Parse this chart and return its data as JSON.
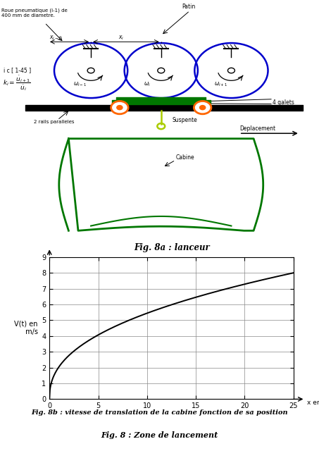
{
  "fig_title_a": "Fig. 8a : lanceur",
  "fig_caption_b": "Fig. 8b : vitesse de translation de la cabine fonction de sa position",
  "fig_caption_main": "Fig. 8 : Zone de lancement",
  "ylabel": "V(t) en\n m/s",
  "xlabel": "x en m",
  "xlim": [
    0,
    25
  ],
  "ylim": [
    0,
    9
  ],
  "xticks": [
    0,
    5,
    10,
    15,
    20,
    25
  ],
  "yticks": [
    0,
    1,
    2,
    3,
    4,
    5,
    6,
    7,
    8,
    9
  ],
  "wheel_color": "#0000cc",
  "green_color": "#007700",
  "orange_color": "#ff6600",
  "rail_color": "#111111",
  "label_roue": "Roue pneumatique (i-1) de\n400 mm de diametre.",
  "label_patin": "Patin",
  "label_galets": "4 galets",
  "label_rails": "2 rails paralleles",
  "label_suspente": "Suspente",
  "label_deplacement": "Deplacement",
  "label_cabine": "Cabine",
  "label_i": "i c [ 1-45 ]",
  "curve_alpha": 0.42,
  "curve_c_factor": 8.0
}
